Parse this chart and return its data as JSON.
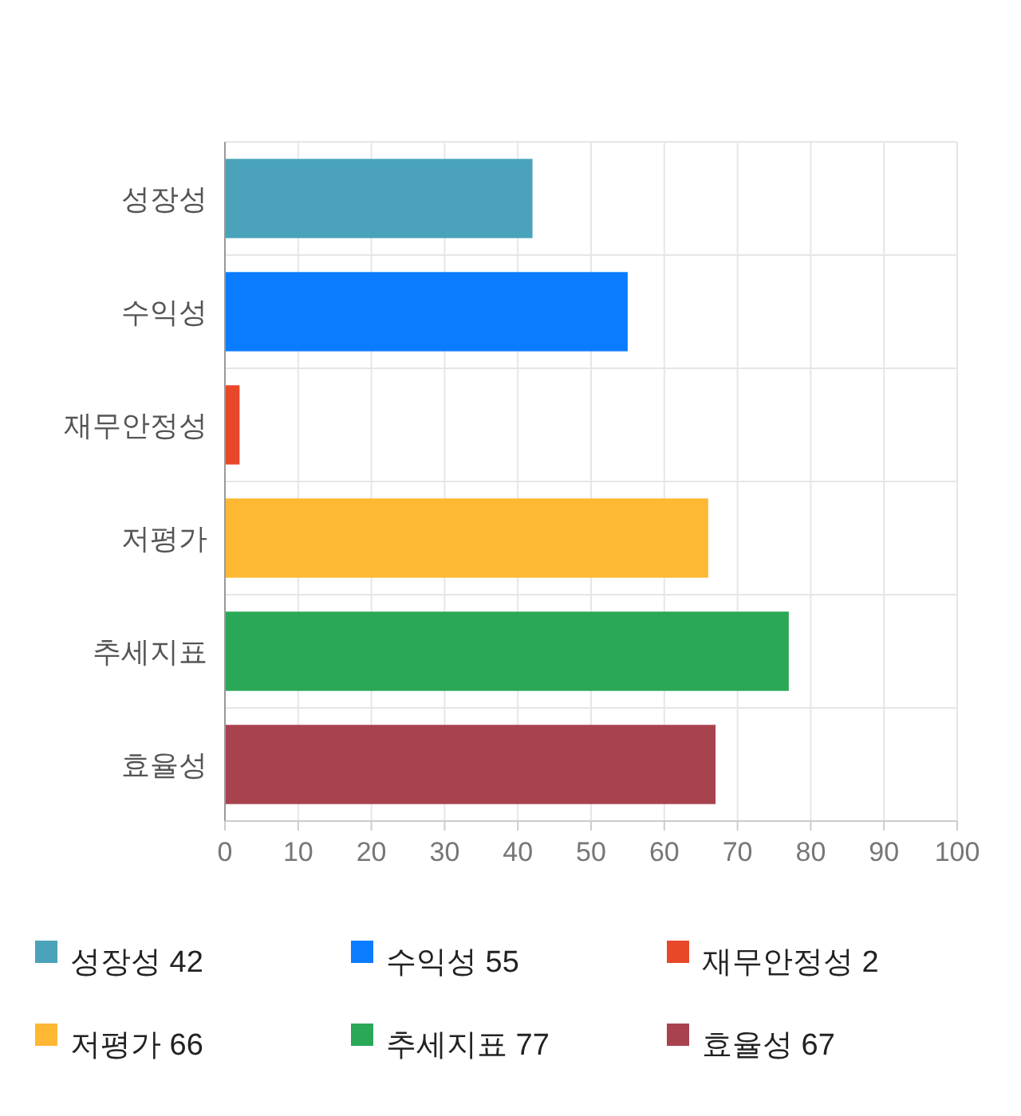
{
  "chart_data": {
    "type": "bar",
    "orientation": "horizontal",
    "categories": [
      "성장성",
      "수익성",
      "재무안정성",
      "저평가",
      "추세지표",
      "효율성"
    ],
    "series": [
      {
        "name": "성장성 42",
        "color": "#4aa3ba",
        "values": [
          42,
          null,
          null,
          null,
          null,
          null
        ]
      },
      {
        "name": "수익성 55",
        "color": "#0a7cff",
        "values": [
          null,
          55,
          null,
          null,
          null,
          null
        ]
      },
      {
        "name": "재무안정성 2",
        "color": "#e8472a",
        "values": [
          null,
          null,
          2,
          null,
          null,
          null
        ]
      },
      {
        "name": "저평가 66",
        "color": "#ffb833",
        "values": [
          null,
          null,
          null,
          66,
          null,
          null
        ]
      },
      {
        "name": "추세지표 77",
        "color": "#2aa757",
        "values": [
          null,
          null,
          null,
          null,
          77,
          null
        ]
      },
      {
        "name": "효율성 67",
        "color": "#a8424f",
        "values": [
          null,
          null,
          null,
          null,
          null,
          67
        ]
      }
    ],
    "stacked": true,
    "xlim": [
      0,
      100
    ],
    "xticks": [
      0,
      10,
      20,
      30,
      40,
      50,
      60,
      70,
      80,
      90,
      100
    ],
    "grid": true,
    "legend": "bottom"
  }
}
